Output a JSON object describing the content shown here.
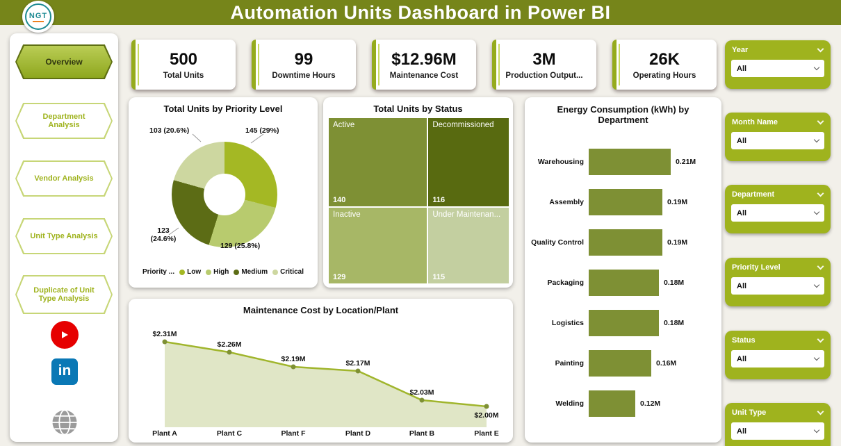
{
  "header": {
    "title": "Automation Units Dashboard in Power BI",
    "logo_text": "NGT"
  },
  "sidebar": {
    "items": [
      {
        "label": "Overview",
        "active": true
      },
      {
        "label": "Department Analysis",
        "active": false
      },
      {
        "label": "Vendor Analysis",
        "active": false
      },
      {
        "label": "Unit Type Analysis",
        "active": false
      },
      {
        "label": "Duplicate of Unit Type Analysis",
        "active": false
      }
    ],
    "social": [
      {
        "name": "youtube"
      },
      {
        "name": "linkedin"
      },
      {
        "name": "website"
      }
    ]
  },
  "kpis": [
    {
      "value": "500",
      "label": "Total Units"
    },
    {
      "value": "99",
      "label": "Downtime Hours"
    },
    {
      "value": "$12.96M",
      "label": "Maintenance Cost"
    },
    {
      "value": "3M",
      "label": "Production Output..."
    },
    {
      "value": "26K",
      "label": "Operating Hours"
    }
  ],
  "filters": [
    {
      "label": "Year",
      "value": "All"
    },
    {
      "label": "Month Name",
      "value": "All"
    },
    {
      "label": "Department",
      "value": "All"
    },
    {
      "label": "Priority Level",
      "value": "All"
    },
    {
      "label": "Status",
      "value": "All"
    },
    {
      "label": "Unit Type",
      "value": "All"
    }
  ],
  "chart_data": [
    {
      "type": "pie",
      "donut": true,
      "title": "Total Units by Priority Level",
      "legend_title": "Priority ...",
      "series_labels": [
        "Low",
        "High",
        "Medium",
        "Critical"
      ],
      "values": [
        145,
        129,
        123,
        103
      ],
      "percentages": [
        29,
        25.8,
        24.6,
        20.6
      ],
      "callouts": [
        "103 (20.6%)",
        "145 (29%)",
        "123 (24.6%)",
        "129 (25.8%)"
      ],
      "colors": [
        "#a4b824",
        "#b8cb6e",
        "#5c6c15",
        "#cdd7a0"
      ],
      "legend_position": "bottom"
    },
    {
      "type": "treemap",
      "title": "Total Units by Status",
      "tiles": [
        {
          "label": "Active",
          "value": 140,
          "color": "#7e9034"
        },
        {
          "label": "Decommissioned",
          "value": 116,
          "color": "#586a10"
        },
        {
          "label": "Inactive",
          "value": 129,
          "color": "#a7b766"
        },
        {
          "label": "Under Maintenan...",
          "value": 115,
          "color": "#c3cfa0"
        }
      ]
    },
    {
      "type": "bar",
      "orientation": "horizontal",
      "title": "Energy Consumption (kWh) by Department",
      "categories": [
        "Warehousing",
        "Assembly",
        "Quality Control",
        "Packaging",
        "Logistics",
        "Painting",
        "Welding"
      ],
      "values": [
        0.21,
        0.19,
        0.19,
        0.18,
        0.18,
        0.16,
        0.12
      ],
      "value_labels": [
        "0.21M",
        "0.19M",
        "0.19M",
        "0.18M",
        "0.18M",
        "0.16M",
        "0.12M"
      ],
      "xlim": [
        0,
        0.25
      ],
      "bar_color": "#7e9034"
    },
    {
      "type": "area",
      "title": "Maintenance Cost by Location/Plant",
      "categories": [
        "Plant A",
        "Plant C",
        "Plant F",
        "Plant D",
        "Plant B",
        "Plant E"
      ],
      "values": [
        2.31,
        2.26,
        2.19,
        2.17,
        2.03,
        2.0
      ],
      "value_labels": [
        "$2.31M",
        "$2.26M",
        "$2.19M",
        "$2.17M",
        "$2.03M",
        "$2.00M"
      ],
      "ylim": [
        1.85,
        2.4
      ],
      "line_color": "#a0b52c",
      "fill_color": "#e0e6c6",
      "marker_color": "#7e9034"
    }
  ]
}
